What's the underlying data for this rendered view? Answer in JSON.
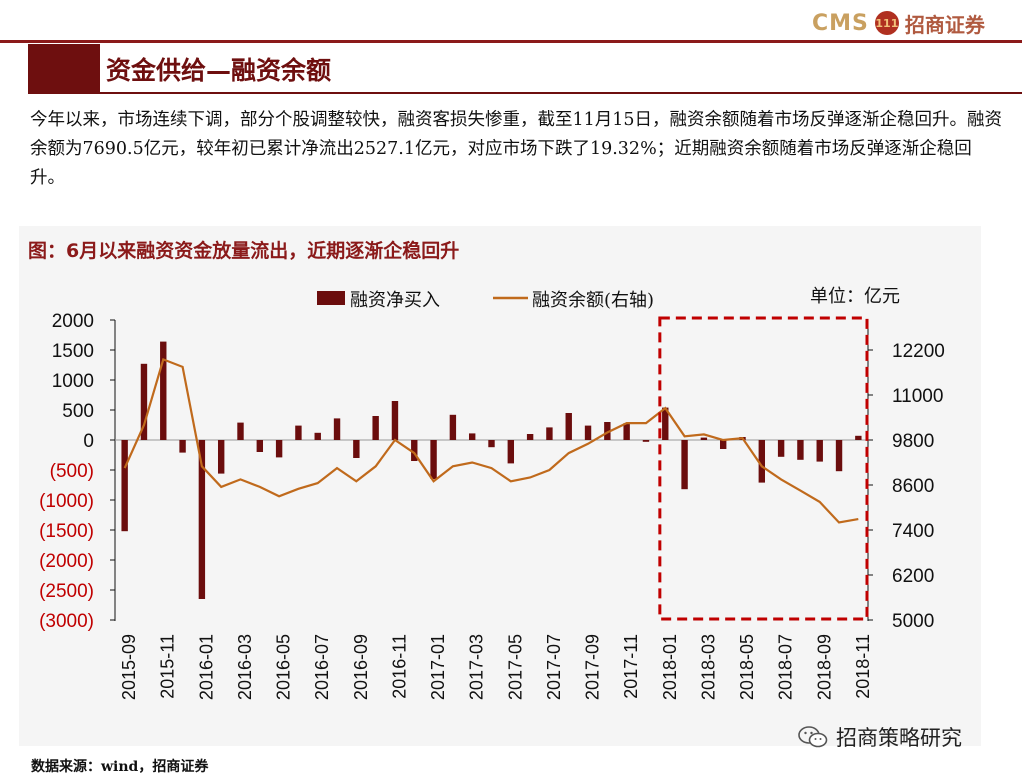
{
  "header": {
    "logo_text": "CMS",
    "logo_badge": "111",
    "logo_cn": "招商证券",
    "title": "资金供给—融资余额"
  },
  "description": "今年以来，市场连续下调，部分个股调整较快，融资客损失惨重，截至11月15日，融资余额随着市场反弹逐渐企稳回升。融资余额为7690.5亿元，较年初已累计净流出2527.1亿元，对应市场下跌了19.32%；近期融资余额随着市场反弹逐渐企稳回升。",
  "chart_title": "图：6月以来融资资金放量流出，近期逐渐企稳回升",
  "source": "数据来源：wind，招商证券",
  "watermark": "招商策略研究",
  "colors": {
    "bar": "#6b0d0d",
    "line": "#c06a1c",
    "negative_tick": "#c00000",
    "highlight_box": "#c00000"
  },
  "chart_data": {
    "type": "bar+line",
    "unit_label": "单位：亿元",
    "legend": [
      "融资净买入",
      "融资余额(右轴)"
    ],
    "left_axis": {
      "ticks": [
        2000,
        1500,
        1000,
        500,
        0,
        -500,
        -1000,
        -1500,
        -2000,
        -2500,
        -3000
      ],
      "tick_labels": [
        "2000",
        "1500",
        "1000",
        "500",
        "0",
        "(500)",
        "(1000)",
        "(1500)",
        "(2000)",
        "(2500)",
        "(3000)"
      ],
      "ylim": [
        -3000,
        2000
      ]
    },
    "right_axis": {
      "ticks": [
        12200,
        11000,
        9800,
        8600,
        7400,
        6200,
        5000
      ],
      "tick_labels": [
        "12200",
        "11000",
        "9800",
        "8600",
        "7400",
        "6200",
        "5000"
      ],
      "ylim": [
        5000,
        13000
      ]
    },
    "x_tick_labels": [
      "2015-09",
      "2015-11",
      "2016-01",
      "2016-03",
      "2016-05",
      "2016-07",
      "2016-09",
      "2016-11",
      "2017-01",
      "2017-03",
      "2017-05",
      "2017-07",
      "2017-09",
      "2017-11",
      "2018-01",
      "2018-03",
      "2018-05",
      "2018-07",
      "2018-09",
      "2018-11"
    ],
    "series": [
      {
        "name": "融资净买入",
        "kind": "bar",
        "values": [
          -1520,
          1270,
          1640,
          -210,
          -2650,
          -560,
          290,
          -200,
          -290,
          240,
          120,
          360,
          -300,
          400,
          650,
          -350,
          -650,
          420,
          110,
          -120,
          -390,
          100,
          210,
          450,
          240,
          300,
          280,
          -30,
          540,
          -820,
          40,
          -150,
          50,
          -710,
          -280,
          -330,
          -360,
          -520,
          70
        ]
      },
      {
        "name": "融资余额(右轴)",
        "kind": "line",
        "values": [
          9050,
          10200,
          11950,
          11750,
          9100,
          8550,
          8750,
          8550,
          8300,
          8500,
          8650,
          9050,
          8700,
          9100,
          9800,
          9450,
          8700,
          9100,
          9200,
          9050,
          8700,
          8800,
          9000,
          9450,
          9700,
          10000,
          10250,
          10250,
          10650,
          9900,
          9950,
          9800,
          9850,
          9100,
          8750,
          8450,
          8150,
          7600,
          7690
        ]
      }
    ],
    "highlight": {
      "from": "2018-01",
      "to": "2018-11"
    }
  }
}
